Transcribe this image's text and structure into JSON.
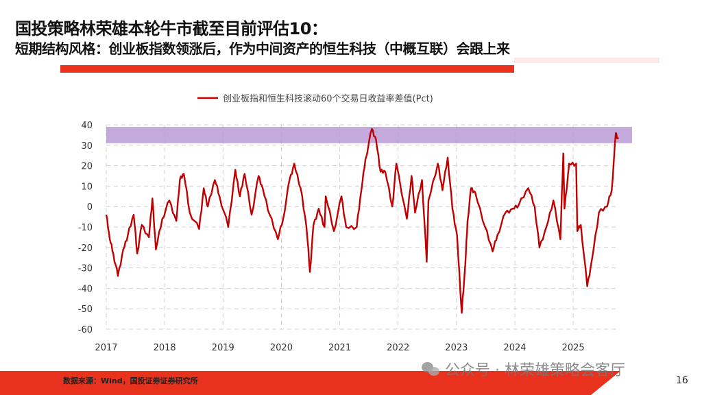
{
  "header": {
    "title": "国投策略林荣雄本轮牛市截至目前评估10：",
    "subtitle": "短期结构风格：创业板指数领涨后，作为中间资产的恒生科技（中概互联）会跟上来"
  },
  "footer": {
    "source": "数据来源：Wind，国投证券证券研究所",
    "page_number": "16",
    "watermark": "公众号 · 林荣雄策略会客厅",
    "watermark_icon": "wechat-icon"
  },
  "colors": {
    "accent": "#e8321e",
    "line": "#c00000",
    "band": "#b99ad6"
  },
  "chart_data": {
    "type": "line",
    "title": "",
    "xlabel": "",
    "ylabel": "",
    "legend_position": "top",
    "grid": true,
    "xlim": [
      2017,
      2025.75
    ],
    "ylim": [
      -60,
      40
    ],
    "xticks": [
      "2017",
      "2018",
      "2019",
      "2020",
      "2021",
      "2022",
      "2023",
      "2024",
      "2025"
    ],
    "yticks": [
      "40",
      "30",
      "20",
      "10",
      "0",
      "-10",
      "-20",
      "-30",
      "-40",
      "-50",
      "-60"
    ],
    "highlight_band": [
      31,
      39
    ],
    "series": [
      {
        "name": "创业板指和恒生科技滚动60个交易日收益率差值(Pct)",
        "x": [
          2017.0,
          2017.06,
          2017.12,
          2017.2,
          2017.29,
          2017.37,
          2017.47,
          2017.53,
          2017.61,
          2017.73,
          2017.79,
          2017.85,
          2017.96,
          2018.08,
          2018.2,
          2018.26,
          2018.33,
          2018.43,
          2018.59,
          2018.67,
          2018.74,
          2018.86,
          2018.94,
          2019.09,
          2019.21,
          2019.29,
          2019.37,
          2019.49,
          2019.61,
          2019.68,
          2019.8,
          2019.94,
          2020.03,
          2020.14,
          2020.22,
          2020.33,
          2020.43,
          2020.49,
          2020.55,
          2020.64,
          2020.74,
          2020.76,
          2020.9,
          2021.03,
          2021.11,
          2021.29,
          2021.37,
          2021.44,
          2021.55,
          2021.62,
          2021.7,
          2021.78,
          2021.9,
          2021.97,
          2022.15,
          2022.23,
          2022.29,
          2022.41,
          2022.49,
          2022.52,
          2022.68,
          2022.76,
          2022.85,
          2022.93,
          2023.01,
          2023.09,
          2023.15,
          2023.19,
          2023.25,
          2023.32,
          2023.49,
          2023.62,
          2023.7,
          2023.84,
          2023.96,
          2024.07,
          2024.23,
          2024.34,
          2024.42,
          2024.54,
          2024.66,
          2024.78,
          2024.83,
          2024.85,
          2024.93,
          2025.05,
          2025.07,
          2025.13,
          2025.24,
          2025.32,
          2025.44,
          2025.58,
          2025.66,
          2025.73,
          2025.77
        ],
        "values": [
          -4,
          -16,
          -23,
          -34,
          -21,
          -14,
          -4,
          -23,
          -9,
          -15,
          4,
          -21,
          -6,
          3,
          -7,
          13,
          16,
          -3,
          -11,
          9,
          0,
          13,
          5,
          -10,
          18,
          5,
          16,
          -4,
          15,
          9,
          -4,
          -16,
          -6,
          13,
          21,
          9,
          -10,
          -32,
          -9,
          -1,
          -10,
          5,
          -12,
          5,
          -10,
          -10,
          8,
          23,
          38,
          33,
          17,
          17,
          0,
          21,
          -6,
          15,
          -3,
          13,
          -27,
          3,
          21,
          8,
          24,
          -1,
          -14,
          -52,
          -29,
          -7,
          9,
          7,
          -10,
          -22,
          -14,
          -3,
          -1,
          1,
          9,
          0,
          -20,
          -10,
          3,
          -16,
          26,
          -1,
          21,
          21,
          -12,
          -9,
          -39,
          -26,
          -3,
          0,
          8,
          36,
          33
        ]
      }
    ]
  }
}
